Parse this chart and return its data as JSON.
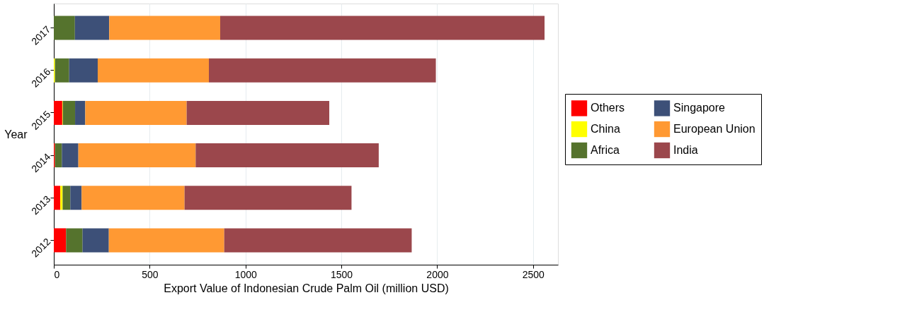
{
  "chart_data": {
    "type": "bar",
    "orientation": "horizontal",
    "stacked": true,
    "xlabel": "Export Value of Indonesian Crude Palm Oil (million USD)",
    "ylabel": "Year",
    "categories": [
      "2017",
      "2016",
      "2015",
      "2014",
      "2013",
      "2012"
    ],
    "series": [
      {
        "name": "Others",
        "color": "#ff0000",
        "values": [
          0,
          0,
          44,
          6,
          34,
          64
        ]
      },
      {
        "name": "China",
        "color": "#ffff00",
        "values": [
          0,
          6,
          3,
          0,
          12,
          0
        ]
      },
      {
        "name": "Africa",
        "color": "#55732d",
        "values": [
          110,
          74,
          64,
          36,
          40,
          86
        ]
      },
      {
        "name": "Singapore",
        "color": "#3d5078",
        "values": [
          179,
          149,
          53,
          86,
          59,
          137
        ]
      },
      {
        "name": "European Union",
        "color": "#ff9933",
        "values": [
          579,
          580,
          529,
          612,
          537,
          602
        ]
      },
      {
        "name": "India",
        "color": "#9b474c",
        "values": [
          1692,
          1184,
          744,
          955,
          871,
          978
        ]
      }
    ],
    "xlim": [
      0,
      2630
    ],
    "xticks": [
      0,
      500,
      1000,
      1500,
      2000,
      2500
    ],
    "grid": "x",
    "legend": "right"
  }
}
